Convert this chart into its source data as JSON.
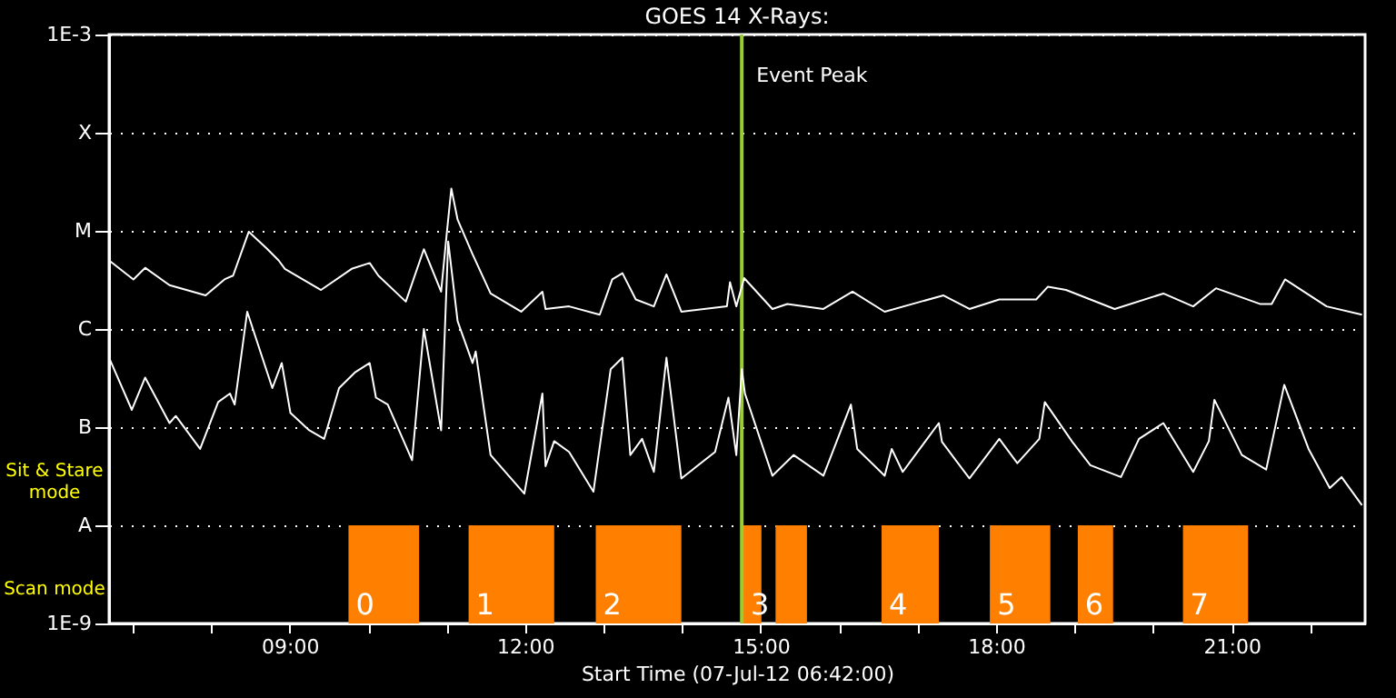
{
  "chart_data": {
    "type": "line",
    "title": "GOES 14 X-Rays:",
    "xlabel": "Start Time (07-Jul-12 06:42:00)",
    "xlim": [
      6.7,
      22.7
    ],
    "xticks": [
      {
        "value": 7,
        "label": null
      },
      {
        "value": 8,
        "label": null
      },
      {
        "value": 9,
        "label": "09:00"
      },
      {
        "value": 10,
        "label": null
      },
      {
        "value": 11,
        "label": null
      },
      {
        "value": 12,
        "label": "12:00"
      },
      {
        "value": 13,
        "label": null
      },
      {
        "value": 14,
        "label": null
      },
      {
        "value": 15,
        "label": "15:00"
      },
      {
        "value": 16,
        "label": null
      },
      {
        "value": 17,
        "label": null
      },
      {
        "value": 18,
        "label": "18:00"
      },
      {
        "value": 19,
        "label": null
      },
      {
        "value": 20,
        "label": null
      },
      {
        "value": 21,
        "label": "21:00"
      },
      {
        "value": 22,
        "label": null
      }
    ],
    "ylim": [
      1e-09,
      0.001
    ],
    "log": true,
    "grid": "y",
    "yticks": [
      {
        "value": 1e-09,
        "label": "1E-9"
      },
      {
        "value": 1e-08,
        "label": "A"
      },
      {
        "value": 1e-07,
        "label": "B"
      },
      {
        "value": 1e-06,
        "label": "C"
      },
      {
        "value": 1e-05,
        "label": "M"
      },
      {
        "value": 0.0001,
        "label": "X"
      },
      {
        "value": 0.001,
        "label": "1E-3"
      }
    ],
    "series": [
      {
        "color": "#ffffff",
        "x": [
          6.7,
          7.01,
          7.16,
          7.47,
          7.93,
          8.17,
          8.28,
          8.48,
          8.71,
          8.86,
          8.94,
          9.4,
          9.79,
          10.02,
          10.13,
          10.48,
          10.71,
          10.93,
          11.0,
          11.06,
          11.14,
          11.33,
          11.56,
          11.95,
          12.22,
          12.26,
          12.56,
          12.95,
          13.11,
          13.24,
          13.41,
          13.64,
          13.8,
          13.99,
          14.57,
          14.61,
          14.69,
          14.79,
          15.15,
          15.34,
          15.8,
          16.17,
          16.58,
          17.04,
          17.33,
          17.66,
          18.04,
          18.51,
          18.66,
          18.89,
          19.51,
          20.13,
          20.51,
          20.8,
          21.36,
          21.51,
          21.68,
          22.21,
          22.66
        ],
        "values": [
          5e-06,
          3.2e-06,
          4.2e-06,
          2.8e-06,
          2.2e-06,
          3.2e-06,
          3.5e-06,
          9.8e-06,
          6.6e-06,
          5e-06,
          4.1e-06,
          2.5e-06,
          4.1e-06,
          4.7e-06,
          3.5e-06,
          1.9e-06,
          6.5e-06,
          2.4e-06,
          9.1e-06,
          2.7e-05,
          1.3e-05,
          5.8e-06,
          2.3e-06,
          1.5e-06,
          2.4e-06,
          1.6e-06,
          1.7e-06,
          1.4e-06,
          3.2e-06,
          3.7e-06,
          2e-06,
          1.7e-06,
          3.6e-06,
          1.5e-06,
          1.7e-06,
          3e-06,
          1.7e-06,
          3.3e-06,
          1.6e-06,
          1.8e-06,
          1.6e-06,
          2.4e-06,
          1.5e-06,
          1.9e-06,
          2.2e-06,
          1.6e-06,
          2e-06,
          2e-06,
          2.7e-06,
          2.5e-06,
          1.6e-06,
          2.3e-06,
          1.7e-06,
          2.6e-06,
          1.8e-06,
          1.8e-06,
          3.2e-06,
          1.7e-06,
          1.4e-06
        ]
      },
      {
        "color": "#ffffff",
        "x": [
          6.7,
          6.99,
          7.16,
          7.47,
          7.55,
          7.86,
          8.09,
          8.24,
          8.3,
          8.46,
          8.78,
          8.9,
          9.01,
          9.25,
          9.44,
          9.63,
          9.83,
          10.02,
          10.1,
          10.25,
          10.56,
          10.71,
          10.93,
          11.02,
          11.14,
          11.33,
          11.37,
          11.56,
          11.99,
          12.22,
          12.26,
          12.37,
          12.56,
          12.87,
          13.09,
          13.24,
          13.34,
          13.49,
          13.64,
          13.8,
          13.99,
          14.42,
          14.59,
          14.69,
          14.76,
          14.8,
          15.15,
          15.42,
          15.8,
          16.15,
          16.23,
          16.58,
          16.67,
          16.81,
          17.27,
          17.31,
          17.66,
          18.04,
          18.27,
          18.55,
          18.62,
          18.97,
          19.2,
          19.59,
          19.82,
          20.13,
          20.51,
          20.71,
          20.78,
          21.13,
          21.44,
          21.67,
          21.98,
          22.25,
          22.4,
          22.66
        ],
        "values": [
          5.1e-07,
          1.5e-07,
          3.2e-07,
          1.1e-07,
          1.3e-07,
          6e-08,
          1.8e-07,
          2.2e-07,
          1.7e-07,
          1.5e-06,
          2.5e-07,
          4.5e-07,
          1.4e-07,
          9.3e-08,
          7.6e-08,
          2.5e-07,
          3.6e-07,
          4.5e-07,
          2e-07,
          1.7e-07,
          4.6e-08,
          1e-06,
          9.3e-08,
          7.8e-06,
          1.2e-06,
          4.5e-07,
          5.9e-07,
          5.2e-08,
          2.1e-08,
          2.2e-07,
          4e-08,
          7.2e-08,
          5.6e-08,
          2.2e-08,
          3.9e-07,
          5.1e-07,
          5.2e-08,
          7.6e-08,
          3.5e-08,
          5.1e-07,
          3e-08,
          5.6e-08,
          2e-07,
          5.2e-08,
          3.9e-07,
          2.2e-07,
          3.2e-08,
          5.2e-08,
          3.2e-08,
          1.7e-07,
          6e-08,
          3.2e-08,
          6e-08,
          3.5e-08,
          1.1e-07,
          7.1e-08,
          3e-08,
          7.6e-08,
          4.3e-08,
          7.6e-08,
          1.8e-07,
          7.1e-08,
          4.1e-08,
          3.1e-08,
          7.6e-08,
          1.1e-07,
          3.5e-08,
          7.2e-08,
          1.9e-07,
          5.2e-08,
          3.7e-08,
          2.7e-07,
          6e-08,
          2.4e-08,
          3.1e-08,
          1.6e-08
        ]
      }
    ],
    "ref_lines": [
      {
        "axis": "x",
        "value": 14.76,
        "label": "Event Peak",
        "color": "#9acd32"
      }
    ],
    "bands": [
      {
        "axis": "x",
        "from": 9.75,
        "to": 10.65,
        "label": "0",
        "color": "#ff8000"
      },
      {
        "axis": "x",
        "from": 11.28,
        "to": 12.37,
        "label": "1",
        "color": "#ff8000"
      },
      {
        "axis": "x",
        "from": 12.9,
        "to": 13.99,
        "label": "2",
        "color": "#ff8000"
      },
      {
        "axis": "x",
        "from": 14.78,
        "to": 15.01,
        "label": "3",
        "color": "#ff8000"
      },
      {
        "axis": "x",
        "from": 15.19,
        "to": 15.59,
        "label": null,
        "color": "#ff8000"
      },
      {
        "axis": "x",
        "from": 16.54,
        "to": 17.27,
        "label": "4",
        "color": "#ff8000"
      },
      {
        "axis": "x",
        "from": 17.92,
        "to": 18.69,
        "label": "5",
        "color": "#ff8000"
      },
      {
        "axis": "x",
        "from": 19.04,
        "to": 19.49,
        "label": "6",
        "color": "#ff8000"
      },
      {
        "axis": "x",
        "from": 20.38,
        "to": 21.21,
        "label": "7",
        "color": "#ff8000"
      }
    ],
    "annotations": [
      "Sit & Stare\nmode",
      "Scan mode"
    ]
  }
}
